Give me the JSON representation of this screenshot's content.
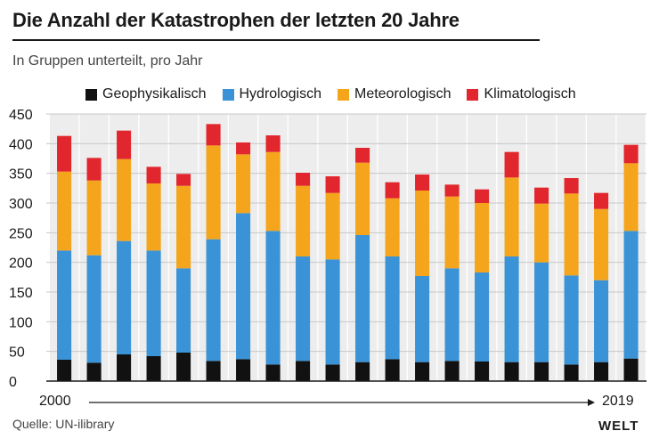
{
  "header": {
    "title": "Die Anzahl der Katastrophen der letzten 20 Jahre",
    "subtitle": "In Gruppen unterteilt, pro Jahr"
  },
  "legend": [
    "Geophysikalisch",
    "Hydrologisch",
    "Meteorologisch",
    "Klimatologisch"
  ],
  "axis": {
    "start_year": "2000",
    "end_year": "2019"
  },
  "footer": {
    "source": "Quelle: UN-ilibrary",
    "logo": "WELT"
  },
  "colors": {
    "geophysikalisch": "#111111",
    "hydrologisch": "#3a93d6",
    "meteorologisch": "#f5a51b",
    "klimatologisch": "#e2262d",
    "column_bg": "#ededed",
    "grid": "#c8c8c8"
  },
  "chart_data": {
    "type": "bar",
    "stacked": true,
    "categories": [
      "2000",
      "2001",
      "2002",
      "2003",
      "2004",
      "2005",
      "2006",
      "2007",
      "2008",
      "2009",
      "2010",
      "2011",
      "2012",
      "2013",
      "2014",
      "2015",
      "2016",
      "2017",
      "2018",
      "2019"
    ],
    "series": [
      {
        "name": "Geophysikalisch",
        "values": [
          36,
          31,
          45,
          42,
          48,
          34,
          37,
          28,
          34,
          28,
          32,
          37,
          32,
          34,
          33,
          32,
          32,
          28,
          32,
          38
        ]
      },
      {
        "name": "Hydrologisch",
        "values": [
          184,
          181,
          191,
          178,
          142,
          205,
          246,
          225,
          176,
          177,
          214,
          173,
          145,
          156,
          150,
          178,
          168,
          150,
          138,
          215
        ]
      },
      {
        "name": "Meteorologisch",
        "values": [
          133,
          126,
          138,
          113,
          139,
          158,
          99,
          133,
          119,
          112,
          122,
          98,
          144,
          121,
          117,
          133,
          99,
          138,
          120,
          114
        ]
      },
      {
        "name": "Klimatologisch",
        "values": [
          60,
          38,
          48,
          28,
          20,
          36,
          20,
          28,
          22,
          28,
          25,
          27,
          27,
          20,
          23,
          43,
          27,
          26,
          27,
          31
        ]
      }
    ],
    "ylim": [
      0,
      450
    ],
    "yticks": [
      0,
      50,
      100,
      150,
      200,
      250,
      300,
      350,
      400,
      450
    ],
    "grid": true,
    "legend_position": "top"
  }
}
